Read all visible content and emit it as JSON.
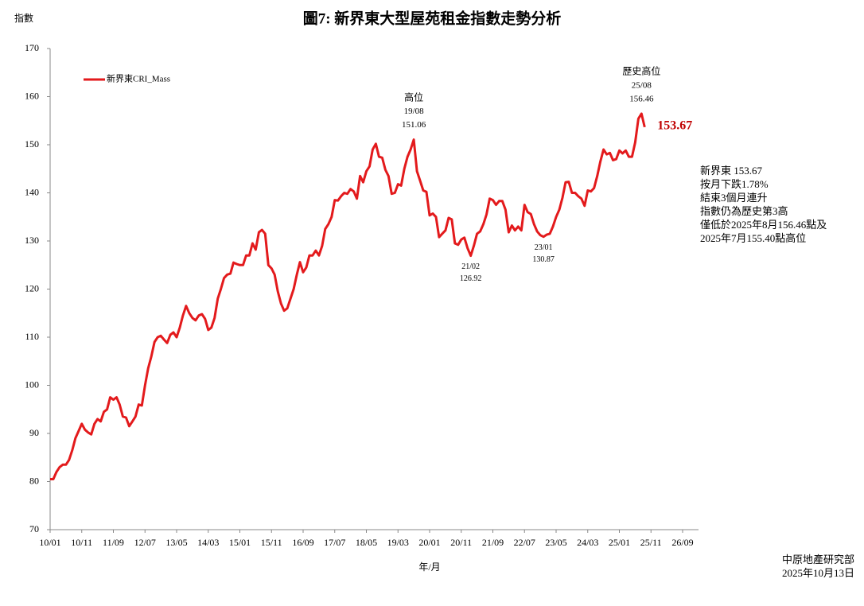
{
  "chart_data": {
    "type": "line",
    "title": "圖7: 新界東大型屋苑租金指數走勢分析",
    "y_label": "指數",
    "x_label": "年/月",
    "x": [
      "10/01",
      "10/02",
      "10/03",
      "10/04",
      "10/05",
      "10/06",
      "10/07",
      "10/08",
      "10/09",
      "10/10",
      "10/11",
      "10/12",
      "11/01",
      "11/02",
      "11/03",
      "11/04",
      "11/05",
      "11/06",
      "11/07",
      "11/08",
      "11/09",
      "11/10",
      "11/11",
      "11/12",
      "12/01",
      "12/02",
      "12/03",
      "12/04",
      "12/05",
      "12/06",
      "12/07",
      "12/08",
      "12/09",
      "12/10",
      "12/11",
      "12/12",
      "13/01",
      "13/02",
      "13/03",
      "13/04",
      "13/05",
      "13/06",
      "13/07",
      "13/08",
      "13/09",
      "13/10",
      "13/11",
      "13/12",
      "14/01",
      "14/02",
      "14/03",
      "14/04",
      "14/05",
      "14/06",
      "14/07",
      "14/08",
      "14/09",
      "14/10",
      "14/11",
      "14/12",
      "15/01",
      "15/02",
      "15/03",
      "15/04",
      "15/05",
      "15/06",
      "15/07",
      "15/08",
      "15/09",
      "15/10",
      "15/11",
      "15/12",
      "16/01",
      "16/02",
      "16/03",
      "16/04",
      "16/05",
      "16/06",
      "16/07",
      "16/08",
      "16/09",
      "16/10",
      "16/11",
      "16/12",
      "17/01",
      "17/02",
      "17/03",
      "17/04",
      "17/05",
      "17/06",
      "17/07",
      "17/08",
      "17/09",
      "17/10",
      "17/11",
      "17/12",
      "18/01",
      "18/02",
      "18/03",
      "18/04",
      "18/05",
      "18/06",
      "18/07",
      "18/08",
      "18/09",
      "18/10",
      "18/11",
      "18/12",
      "19/01",
      "19/02",
      "19/03",
      "19/04",
      "19/05",
      "19/06",
      "19/07",
      "19/08",
      "19/09",
      "19/10",
      "19/11",
      "19/12",
      "20/01",
      "20/02",
      "20/03",
      "20/04",
      "20/05",
      "20/06",
      "20/07",
      "20/08",
      "20/09",
      "20/10",
      "20/11",
      "20/12",
      "21/01",
      "21/02",
      "21/03",
      "21/04",
      "21/05",
      "21/06",
      "21/07",
      "21/08",
      "21/09",
      "21/10",
      "21/11",
      "21/12",
      "22/01",
      "22/02",
      "22/03",
      "22/04",
      "22/05",
      "22/06",
      "22/07",
      "22/08",
      "22/09",
      "22/10",
      "22/11",
      "22/12",
      "23/01",
      "23/02",
      "23/03",
      "23/04",
      "23/05",
      "23/06",
      "23/07",
      "23/08",
      "23/09",
      "23/10",
      "23/11",
      "23/12",
      "24/01",
      "24/02",
      "24/03",
      "24/04",
      "24/05",
      "24/06",
      "24/07",
      "24/08",
      "24/09",
      "24/10",
      "24/11",
      "24/12",
      "25/01",
      "25/02",
      "25/03",
      "25/04",
      "25/05",
      "25/06",
      "25/07",
      "25/08",
      "25/09"
    ],
    "series": [
      {
        "name": "新界東CRI_Mass",
        "color": "#e31a1c",
        "values": [
          80.5,
          80.5,
          82,
          83,
          83.5,
          83.5,
          84.5,
          86.5,
          89,
          90.5,
          92,
          90.8,
          90.2,
          89.8,
          92,
          93,
          92.5,
          94.5,
          95,
          97.5,
          97,
          97.5,
          96,
          93.5,
          93.3,
          91.5,
          92.5,
          93.5,
          96,
          95.8,
          100,
          103.5,
          106,
          109,
          110,
          110.3,
          109.5,
          108.8,
          110.5,
          111,
          110,
          112,
          114.5,
          116.5,
          115,
          114,
          113.5,
          114.5,
          114.8,
          113.8,
          111.5,
          112,
          114,
          118,
          120,
          122.3,
          123,
          123.2,
          125.5,
          125.2,
          125,
          125,
          127,
          127,
          129.5,
          128.2,
          131.8,
          132.3,
          131.5,
          125,
          124.3,
          123,
          119.5,
          117,
          115.5,
          116,
          118,
          120,
          123,
          125.6,
          123.5,
          124.5,
          127,
          127,
          128,
          127,
          129,
          132.5,
          133.5,
          135,
          138.5,
          138.4,
          139.3,
          140,
          139.8,
          140.8,
          140.3,
          138.8,
          143.5,
          142.2,
          144.5,
          145.5,
          149,
          150.2,
          147.5,
          147.3,
          144.8,
          143.5,
          139.8,
          140,
          141.8,
          141.5,
          145,
          147.5,
          149,
          151.06,
          144.5,
          142.5,
          140.5,
          140.2,
          135.3,
          135.7,
          135,
          130.8,
          131.5,
          132.2,
          134.8,
          134.5,
          129.5,
          129.2,
          130.3,
          130.7,
          128.5,
          126.92,
          129,
          131.5,
          132,
          133.5,
          135.5,
          138.8,
          138.5,
          137.5,
          138.3,
          138.3,
          136.5,
          131.8,
          133.2,
          132.2,
          133,
          132.2,
          137.5,
          136,
          135.6,
          133.5,
          132,
          131.2,
          130.87,
          131.3,
          131.5,
          133,
          135,
          136.5,
          139,
          142.2,
          142.3,
          140,
          140,
          139.3,
          138.8,
          137.3,
          140.5,
          140.3,
          141,
          143.5,
          146.5,
          149,
          148,
          148.3,
          146.8,
          147,
          148.8,
          148.2,
          148.8,
          147.5,
          147.5,
          150.5,
          155.4,
          156.46,
          153.67
        ]
      }
    ],
    "xlim": [
      "10/01",
      "26/09"
    ],
    "xticks": [
      "10/01",
      "10/11",
      "11/09",
      "12/07",
      "13/05",
      "14/03",
      "15/01",
      "15/11",
      "16/09",
      "17/07",
      "18/05",
      "19/03",
      "20/01",
      "20/11",
      "21/09",
      "22/07",
      "23/05",
      "24/03",
      "25/01",
      "25/11",
      "26/09"
    ],
    "ylim": [
      70,
      170
    ],
    "yticks": [
      70,
      80,
      90,
      100,
      110,
      120,
      130,
      140,
      150,
      160,
      170
    ],
    "grid": false,
    "legend": "top-left",
    "annotations": [
      {
        "label": "高位",
        "x": "19/08",
        "value": 151.06,
        "position": "above"
      },
      {
        "x": "21/02",
        "value": 126.92,
        "position": "below"
      },
      {
        "x": "23/01",
        "value": 130.87,
        "position": "below"
      },
      {
        "label": "歷史高位",
        "x": "25/08",
        "value": 156.46,
        "position": "above"
      },
      {
        "x": "25/09",
        "value": 153.67,
        "position": "right"
      }
    ],
    "notes": [
      "新界東 153.67",
      "按月下跌1.78%",
      "結束3個月連升",
      "指數仍為歷史第3高",
      "僅低於2025年8月156.46點及",
      "2025年7月155.40點高位"
    ],
    "source": [
      "中原地產研究部",
      "2025年10月13日"
    ]
  }
}
